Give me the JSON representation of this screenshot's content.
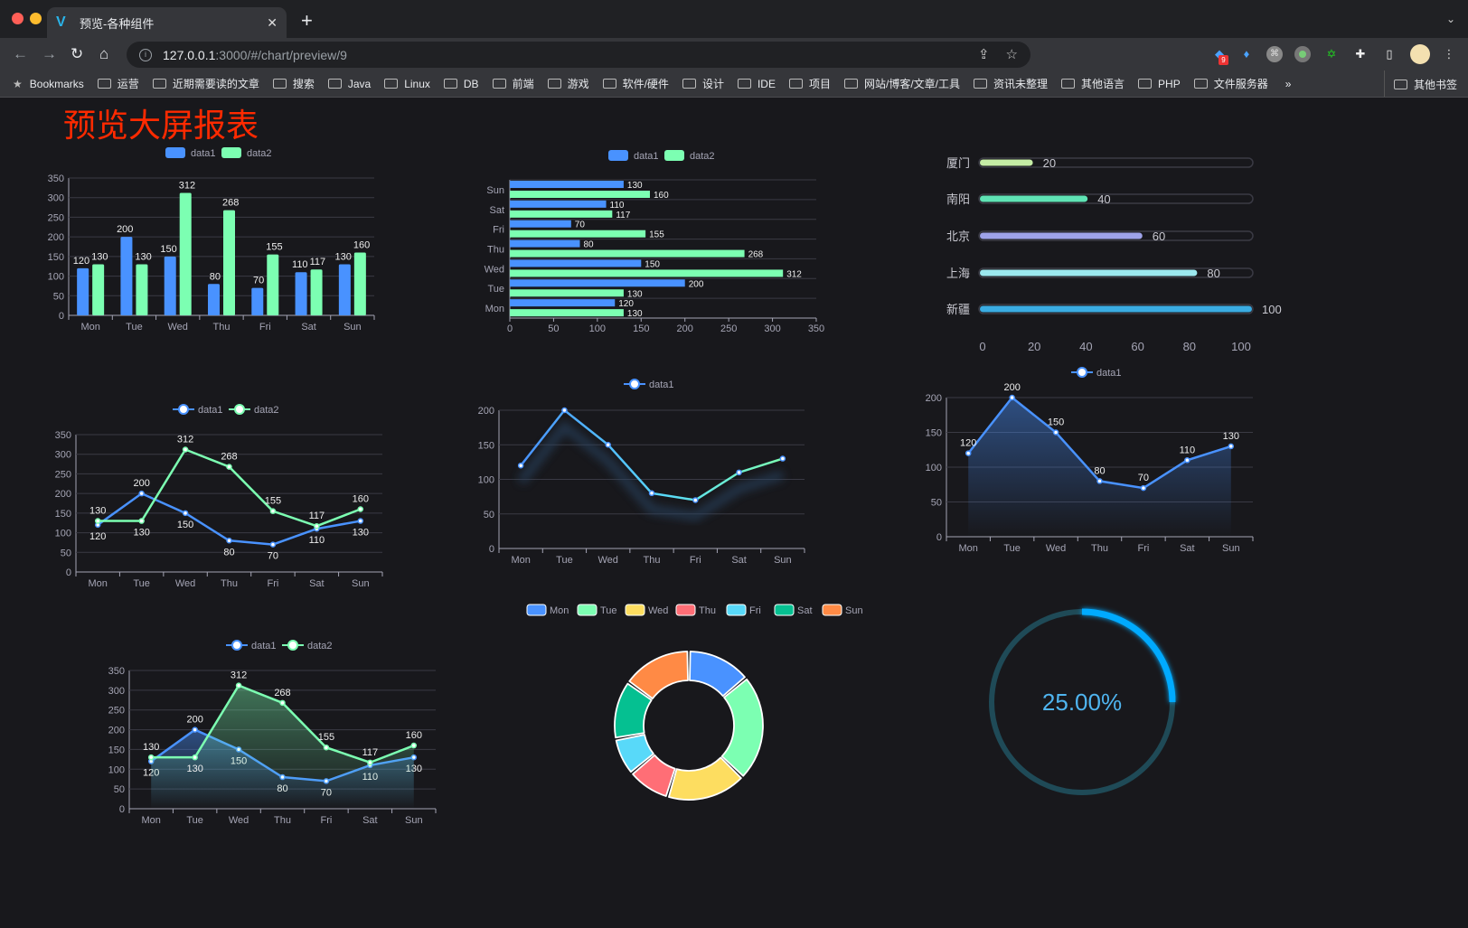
{
  "browser": {
    "tab_title": "预览-各种组件",
    "url_host": "127.0.0.1",
    "url_path": ":3000/#/chart/preview/9",
    "extension_badge": "9",
    "bookmarks_label": "Bookmarks",
    "bookmarks": [
      "运营",
      "近期需要读的文章",
      "搜索",
      "Java",
      "Linux",
      "DB",
      "前端",
      "游戏",
      "软件/硬件",
      "设计",
      "IDE",
      "项目",
      "网站/博客/文章/工具",
      "资讯未整理",
      "其他语言",
      "PHP",
      "文件服务器"
    ],
    "overflow": "»",
    "other_bookmarks": "其他书签"
  },
  "page": {
    "title": "预览大屏报表",
    "title_color": "#ff2a00"
  },
  "colors": {
    "data1": "#4992ff",
    "data2": "#7cffb2",
    "background": "#18181c"
  },
  "chart_data": [
    {
      "type": "bar",
      "orientation": "vertical",
      "legend": [
        "data1",
        "data2"
      ],
      "legend_placement": "top",
      "categories": [
        "Mon",
        "Tue",
        "Wed",
        "Thu",
        "Fri",
        "Sat",
        "Sun"
      ],
      "series": [
        {
          "name": "data1",
          "values": [
            120,
            200,
            150,
            80,
            70,
            110,
            130
          ]
        },
        {
          "name": "data2",
          "values": [
            130,
            130,
            312,
            268,
            155,
            117,
            160
          ]
        }
      ],
      "ylim": [
        0,
        350
      ],
      "yticks": [
        0,
        50,
        100,
        150,
        200,
        250,
        300,
        350
      ],
      "grid": true,
      "data_labels": true
    },
    {
      "type": "bar",
      "orientation": "horizontal",
      "legend": [
        "data1",
        "data2"
      ],
      "legend_placement": "top",
      "categories": [
        "Mon",
        "Tue",
        "Wed",
        "Thu",
        "Fri",
        "Sat",
        "Sun"
      ],
      "series": [
        {
          "name": "data1",
          "values": [
            120,
            200,
            150,
            80,
            70,
            110,
            130
          ]
        },
        {
          "name": "data2",
          "values": [
            130,
            130,
            312,
            268,
            155,
            117,
            160
          ]
        }
      ],
      "xlim": [
        0,
        350
      ],
      "xticks": [
        0,
        50,
        100,
        150,
        200,
        250,
        300,
        350
      ],
      "grid": true,
      "data_labels": true
    },
    {
      "type": "bar",
      "orientation": "horizontal",
      "style": "progress",
      "categories": [
        "厦门",
        "南阳",
        "北京",
        "上海",
        "新疆"
      ],
      "values": [
        20,
        40,
        60,
        80,
        100
      ],
      "colors": [
        "#c5eda5",
        "#5fe3b4",
        "#9ea3ea",
        "#9be8ee",
        "#3aace2"
      ],
      "xlim": [
        0,
        100
      ],
      "xticks": [
        0,
        20,
        40,
        60,
        80,
        100
      ],
      "data_labels": true
    },
    {
      "type": "line",
      "legend": [
        "data1",
        "data2"
      ],
      "legend_placement": "top",
      "categories": [
        "Mon",
        "Tue",
        "Wed",
        "Thu",
        "Fri",
        "Sat",
        "Sun"
      ],
      "series": [
        {
          "name": "data1",
          "values": [
            120,
            200,
            150,
            80,
            70,
            110,
            130
          ]
        },
        {
          "name": "data2",
          "values": [
            130,
            130,
            312,
            268,
            155,
            117,
            160
          ]
        }
      ],
      "ylim": [
        0,
        350
      ],
      "yticks": [
        0,
        50,
        100,
        150,
        200,
        250,
        300,
        350
      ],
      "grid": true,
      "data_labels": true
    },
    {
      "type": "line",
      "style": "gradient-shadow",
      "legend": [
        "data1"
      ],
      "legend_placement": "top",
      "categories": [
        "Mon",
        "Tue",
        "Wed",
        "Thu",
        "Fri",
        "Sat",
        "Sun"
      ],
      "series": [
        {
          "name": "data1",
          "values": [
            120,
            200,
            150,
            80,
            70,
            110,
            130
          ]
        }
      ],
      "ylim": [
        0,
        200
      ],
      "yticks": [
        0,
        50,
        100,
        150,
        200
      ],
      "grid": true,
      "data_labels": false
    },
    {
      "type": "area",
      "legend": [
        "data1"
      ],
      "legend_placement": "top",
      "categories": [
        "Mon",
        "Tue",
        "Wed",
        "Thu",
        "Fri",
        "Sat",
        "Sun"
      ],
      "series": [
        {
          "name": "data1",
          "values": [
            120,
            200,
            150,
            80,
            70,
            110,
            130
          ]
        }
      ],
      "ylim": [
        0,
        200
      ],
      "yticks": [
        0,
        50,
        100,
        150,
        200
      ],
      "grid": true,
      "data_labels": true
    },
    {
      "type": "area",
      "legend": [
        "data1",
        "data2"
      ],
      "legend_placement": "top",
      "categories": [
        "Mon",
        "Tue",
        "Wed",
        "Thu",
        "Fri",
        "Sat",
        "Sun"
      ],
      "series": [
        {
          "name": "data1",
          "values": [
            120,
            200,
            150,
            80,
            70,
            110,
            130
          ]
        },
        {
          "name": "data2",
          "values": [
            130,
            130,
            312,
            268,
            155,
            117,
            160
          ]
        }
      ],
      "ylim": [
        0,
        350
      ],
      "yticks": [
        0,
        50,
        100,
        150,
        200,
        250,
        300,
        350
      ],
      "grid": true,
      "data_labels": true
    },
    {
      "type": "pie",
      "style": "donut",
      "legend_placement": "top",
      "categories": [
        "Mon",
        "Tue",
        "Wed",
        "Thu",
        "Fri",
        "Sat",
        "Sun"
      ],
      "values": [
        120,
        200,
        150,
        80,
        70,
        110,
        130
      ],
      "colors": [
        "#4992ff",
        "#7cffb2",
        "#fddd60",
        "#ff6e76",
        "#58d9f9",
        "#05c091",
        "#ff8a45"
      ]
    },
    {
      "type": "gauge",
      "style": "ring",
      "value": 0.25,
      "label": "25.00%",
      "color": "#00aaff",
      "track_color": "#1f4a57"
    }
  ]
}
